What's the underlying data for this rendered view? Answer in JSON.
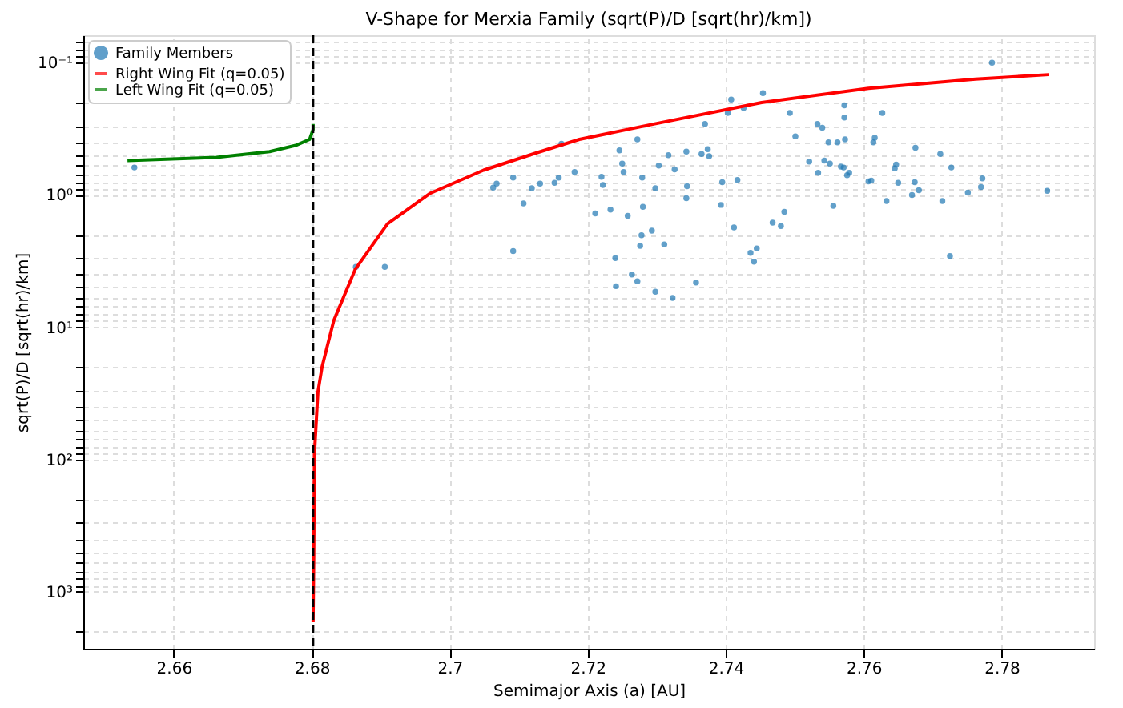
{
  "chart_data": {
    "type": "scatter",
    "title": "V-Shape for Merxia Family (sqrt(P)/D [sqrt(hr)/km])",
    "xlabel": "Semimajor Axis (a) [AU]",
    "ylabel": "sqrt(P)/D [sqrt(hr)/km]",
    "log": "y",
    "grid": true,
    "legend": "top left",
    "xlim": [
      2.6469,
      2.7934
    ],
    "xticks": [
      2.66,
      2.68,
      2.7,
      2.72,
      2.74,
      2.76,
      2.78
    ],
    "ylim": [
      2700,
      0.062
    ],
    "yticks": [
      {
        "value": 0.07,
        "label": null
      },
      {
        "value": 0.08,
        "label": null
      },
      {
        "value": 0.09,
        "label": null
      },
      {
        "value": 0.1,
        "label": "10⁻¹"
      },
      {
        "value": 0.2,
        "label": null
      },
      {
        "value": 0.3,
        "label": null
      },
      {
        "value": 0.4,
        "label": null
      },
      {
        "value": 0.5,
        "label": null
      },
      {
        "value": 0.6,
        "label": null
      },
      {
        "value": 0.7,
        "label": null
      },
      {
        "value": 0.8,
        "label": null
      },
      {
        "value": 0.9,
        "label": null
      },
      {
        "value": 1,
        "label": "10⁰"
      },
      {
        "value": 2,
        "label": null
      },
      {
        "value": 3,
        "label": null
      },
      {
        "value": 4,
        "label": null
      },
      {
        "value": 5,
        "label": null
      },
      {
        "value": 6,
        "label": null
      },
      {
        "value": 7,
        "label": null
      },
      {
        "value": 8,
        "label": null
      },
      {
        "value": 9,
        "label": null
      },
      {
        "value": 10,
        "label": "10¹"
      },
      {
        "value": 20,
        "label": null
      },
      {
        "value": 30,
        "label": null
      },
      {
        "value": 40,
        "label": null
      },
      {
        "value": 50,
        "label": null
      },
      {
        "value": 60,
        "label": null
      },
      {
        "value": 70,
        "label": null
      },
      {
        "value": 80,
        "label": null
      },
      {
        "value": 90,
        "label": null
      },
      {
        "value": 100,
        "label": "10²"
      },
      {
        "value": 200,
        "label": null
      },
      {
        "value": 300,
        "label": null
      },
      {
        "value": 400,
        "label": null
      },
      {
        "value": 500,
        "label": null
      },
      {
        "value": 600,
        "label": null
      },
      {
        "value": 700,
        "label": null
      },
      {
        "value": 800,
        "label": null
      },
      {
        "value": 900,
        "label": null
      },
      {
        "value": 1000,
        "label": "10³"
      },
      {
        "value": 2000,
        "label": null
      }
    ],
    "ref_lines": [
      {
        "axis": "x",
        "value": 2.6802,
        "color": "#000000",
        "line_style": "dashed"
      }
    ],
    "series": [
      {
        "name": "Family Members",
        "marker": "circle",
        "color": "#1f77b4",
        "x": [
          2.6543,
          2.6864,
          2.6906,
          2.7063,
          2.7068,
          2.7092,
          2.7092,
          2.7107,
          2.7119,
          2.7131,
          2.7152,
          2.7158,
          2.7181,
          2.7162,
          2.7786,
          2.7454,
          2.7408,
          2.7426,
          2.7403,
          2.7572,
          2.7493,
          2.7627,
          2.7572,
          2.737,
          2.7533,
          2.754,
          2.7501,
          2.7573,
          2.7616,
          2.7614,
          2.7549,
          2.7562,
          2.7272,
          2.7246,
          2.7675,
          2.7711,
          2.7317,
          2.7343,
          2.7365,
          2.7374,
          2.7376,
          2.725,
          2.7303,
          2.7521,
          2.7543,
          2.7551,
          2.7567,
          2.7571,
          2.7647,
          2.7645,
          2.7727,
          2.7326,
          2.7252,
          2.7534,
          2.7579,
          2.7576,
          2.722,
          2.7279,
          2.7395,
          2.7417,
          2.7607,
          2.7611,
          2.765,
          2.7674,
          2.7772,
          2.7222,
          2.7344,
          2.7298,
          2.777,
          2.7866,
          2.768,
          2.767,
          2.7751,
          2.7343,
          2.7633,
          2.7714,
          2.7393,
          2.7556,
          2.728,
          2.7233,
          2.7211,
          2.7258,
          2.7485,
          2.7468,
          2.748,
          2.7412,
          2.7293,
          2.7278,
          2.7276,
          2.7311,
          2.7445,
          2.7436,
          2.7441,
          2.724,
          2.7725,
          2.7264,
          2.7272,
          2.7241,
          2.7357,
          2.7298,
          2.7323
        ],
        "values": [
          0.62,
          3.5,
          3.5,
          0.88,
          0.82,
          0.74,
          2.66,
          1.16,
          0.89,
          0.82,
          0.81,
          0.74,
          0.67,
          0.41,
          0.1,
          0.17,
          0.19,
          0.22,
          0.24,
          0.21,
          0.24,
          0.24,
          0.26,
          0.29,
          0.29,
          0.31,
          0.36,
          0.38,
          0.37,
          0.4,
          0.4,
          0.4,
          0.38,
          0.46,
          0.44,
          0.49,
          0.5,
          0.47,
          0.49,
          0.45,
          0.51,
          0.58,
          0.6,
          0.56,
          0.55,
          0.58,
          0.61,
          0.62,
          0.59,
          0.63,
          0.62,
          0.64,
          0.67,
          0.68,
          0.68,
          0.71,
          0.73,
          0.74,
          0.8,
          0.77,
          0.79,
          0.78,
          0.81,
          0.8,
          0.75,
          0.84,
          0.86,
          0.89,
          0.87,
          0.93,
          0.92,
          1.0,
          0.96,
          1.06,
          1.11,
          1.11,
          1.19,
          1.21,
          1.23,
          1.29,
          1.38,
          1.44,
          1.34,
          1.62,
          1.72,
          1.76,
          1.86,
          2.02,
          2.43,
          2.37,
          2.54,
          2.74,
          3.2,
          3.0,
          2.9,
          4.0,
          4.5,
          4.9,
          4.6,
          5.4,
          6.0
        ]
      },
      {
        "name": "Right Wing Fit (q=0.05)",
        "type": "line",
        "marker": "none",
        "color": "#ff0000",
        "x": [
          2.6802,
          2.6803,
          2.6804,
          2.6809,
          2.6815,
          2.6832,
          2.6863,
          2.691,
          2.6972,
          2.7049,
          2.7126,
          2.7188,
          2.7297,
          2.7452,
          2.7607,
          2.7762,
          2.7868
        ],
        "values": [
          1700,
          520,
          90,
          31,
          20,
          8.9,
          3.66,
          1.65,
          0.97,
          0.65,
          0.48,
          0.38,
          0.29,
          0.2,
          0.156,
          0.133,
          0.123
        ]
      },
      {
        "name": "Left Wing Fit (q=0.05)",
        "type": "line",
        "marker": "none",
        "color": "#008000",
        "x": [
          2.6533,
          2.6662,
          2.6739,
          2.6778,
          2.6797,
          2.6802,
          2.6802
        ],
        "values": [
          0.55,
          0.52,
          0.47,
          0.42,
          0.38,
          0.32,
          0.29
        ]
      }
    ]
  }
}
